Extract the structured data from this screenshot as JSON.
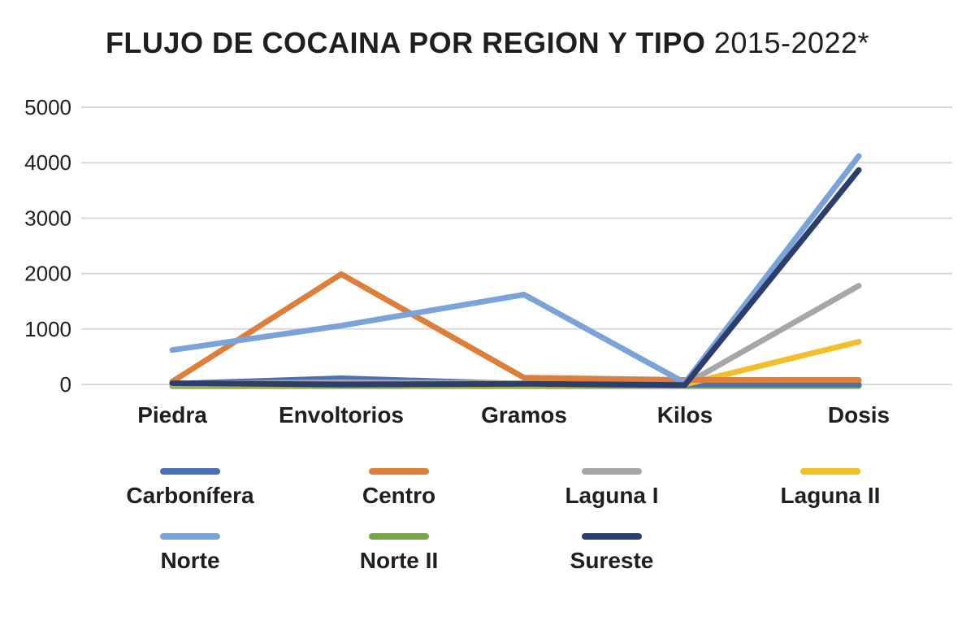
{
  "chart_data": {
    "type": "line",
    "title": "FLUJO DE COCAINA POR REGION Y TIPO",
    "subtitle": "2015-2022*",
    "xlabel": "",
    "ylabel": "",
    "categories": [
      "Piedra",
      "Envoltorios",
      "Gramos",
      "Kilos",
      "Dosis"
    ],
    "ylim": [
      0,
      5000
    ],
    "yticks": [
      0,
      1000,
      2000,
      3000,
      4000,
      5000
    ],
    "grid": true,
    "legend_position": "bottom",
    "series": [
      {
        "name": "Carbonífera",
        "color": "#4a6fb5",
        "values": [
          10,
          110,
          10,
          0,
          0
        ]
      },
      {
        "name": "Centro",
        "color": "#dd7f3b",
        "values": [
          50,
          1990,
          120,
          80,
          80
        ]
      },
      {
        "name": "Laguna I",
        "color": "#a6a6a6",
        "values": [
          10,
          40,
          20,
          0,
          1780
        ]
      },
      {
        "name": "Laguna II",
        "color": "#f0bf2a",
        "values": [
          0,
          0,
          0,
          0,
          770
        ]
      },
      {
        "name": "Norte",
        "color": "#7aa4d9",
        "values": [
          620,
          1060,
          1620,
          30,
          4120
        ]
      },
      {
        "name": "Norte II",
        "color": "#76a84a",
        "values": [
          -30,
          -30,
          -30,
          -30,
          -30
        ]
      },
      {
        "name": "Sureste",
        "color": "#2b3e6e",
        "values": [
          20,
          0,
          10,
          -10,
          3870
        ]
      }
    ]
  }
}
